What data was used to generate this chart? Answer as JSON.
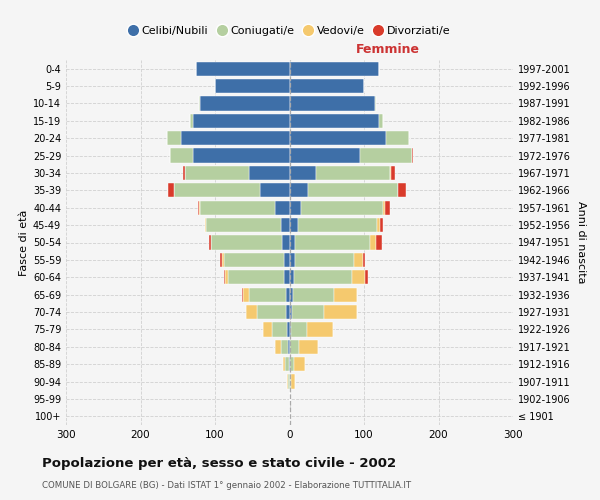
{
  "age_groups": [
    "100+",
    "95-99",
    "90-94",
    "85-89",
    "80-84",
    "75-79",
    "70-74",
    "65-69",
    "60-64",
    "55-59",
    "50-54",
    "45-49",
    "40-44",
    "35-39",
    "30-34",
    "25-29",
    "20-24",
    "15-19",
    "10-14",
    "5-9",
    "0-4"
  ],
  "birth_years": [
    "≤ 1901",
    "1902-1906",
    "1907-1911",
    "1912-1916",
    "1917-1921",
    "1922-1926",
    "1927-1931",
    "1932-1936",
    "1937-1941",
    "1942-1946",
    "1947-1951",
    "1952-1956",
    "1957-1961",
    "1962-1966",
    "1967-1971",
    "1972-1976",
    "1977-1981",
    "1982-1986",
    "1987-1991",
    "1992-1996",
    "1997-2001"
  ],
  "male": {
    "celibi": [
      0,
      0,
      0,
      1,
      2,
      3,
      5,
      5,
      8,
      8,
      10,
      12,
      20,
      40,
      55,
      130,
      145,
      130,
      120,
      100,
      125
    ],
    "coniugati": [
      0,
      0,
      2,
      5,
      10,
      20,
      38,
      50,
      75,
      80,
      95,
      100,
      100,
      115,
      85,
      30,
      20,
      3,
      1,
      0,
      0
    ],
    "vedovi": [
      0,
      0,
      1,
      3,
      8,
      12,
      15,
      8,
      3,
      2,
      1,
      1,
      1,
      0,
      0,
      0,
      0,
      0,
      0,
      0,
      0
    ],
    "divorziati": [
      0,
      0,
      0,
      0,
      0,
      0,
      0,
      1,
      2,
      3,
      2,
      1,
      2,
      8,
      3,
      1,
      0,
      0,
      0,
      0,
      0
    ]
  },
  "female": {
    "nubili": [
      0,
      0,
      0,
      1,
      1,
      2,
      4,
      5,
      6,
      7,
      8,
      12,
      15,
      25,
      35,
      95,
      130,
      120,
      115,
      100,
      120
    ],
    "coniugate": [
      0,
      0,
      2,
      5,
      12,
      22,
      42,
      55,
      78,
      80,
      100,
      105,
      110,
      120,
      100,
      70,
      30,
      5,
      1,
      0,
      0
    ],
    "vedove": [
      0,
      1,
      5,
      15,
      25,
      35,
      45,
      30,
      18,
      12,
      8,
      5,
      3,
      1,
      1,
      0,
      0,
      0,
      0,
      0,
      0
    ],
    "divorziate": [
      0,
      0,
      0,
      0,
      0,
      0,
      0,
      1,
      4,
      3,
      8,
      3,
      7,
      10,
      5,
      1,
      0,
      0,
      0,
      0,
      0
    ]
  },
  "colors": {
    "celibi": "#3e6fa8",
    "coniugati": "#b5cfa0",
    "vedovi": "#f5c96e",
    "divorziati": "#d93b2b"
  },
  "title": "Popolazione per età, sesso e stato civile - 2002",
  "subtitle": "COMUNE DI BOLGARE (BG) - Dati ISTAT 1° gennaio 2002 - Elaborazione TUTTITALIA.IT",
  "xlabel_right": "Femmine",
  "ylabel_left": "Fasce di età",
  "ylabel_right": "Anni di nascita",
  "xlim": 300,
  "legend_labels": [
    "Celibi/Nubili",
    "Coniugati/e",
    "Vedovi/e",
    "Divorziati/e"
  ],
  "bg_color": "#f5f5f5",
  "grid_color": "#cccccc"
}
